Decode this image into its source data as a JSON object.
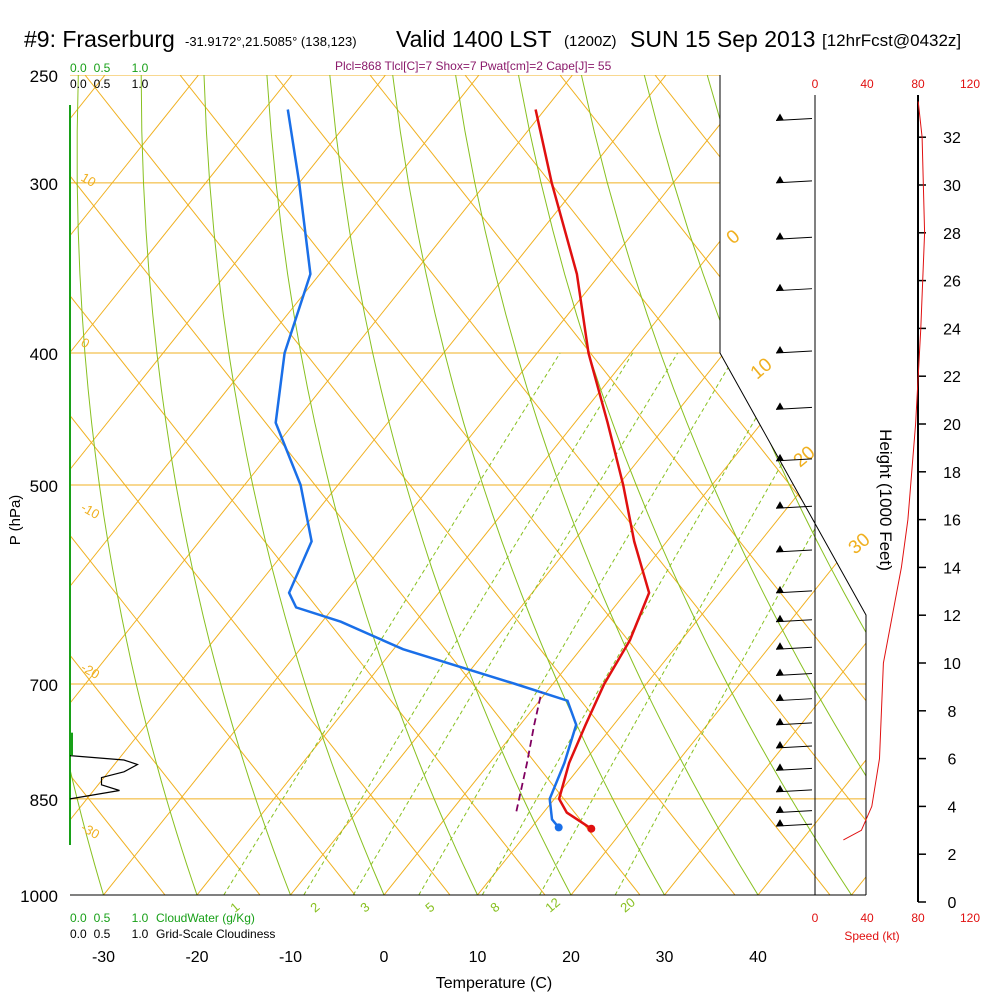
{
  "header": {
    "station": "#9: Fraserburg",
    "coords": "-31.9172°,21.5085° (138,123)",
    "valid": "Valid 1400 LST",
    "utc": "(1200Z)",
    "date": "SUN 15 Sep 2013",
    "forecast": "[12hrFcst@0432z]",
    "indices": "Plcl=868 Tlcl[C]=7 Shox=7 Pwat[cm]=2 Cape[J]= 55"
  },
  "colors": {
    "temperature": "#e01010",
    "dewpoint": "#1a6fe8",
    "parcel": "#800060",
    "isotherm": "#f0b020",
    "dry_adiabat": "#88c020",
    "mixing_ratio": "#88c020",
    "cloud_water": "#18a018",
    "wind_speed": "#e01010"
  },
  "chart_data": {
    "type": "skew-t log-p sounding",
    "xlabel": "Temperature (C)",
    "ylabel": "P (hPa)",
    "right_axis_label": "Height (1000 Feet)",
    "x_ticks": [
      -30,
      -20,
      -10,
      0,
      10,
      20,
      30,
      40
    ],
    "p_ticks": [
      250,
      300,
      400,
      500,
      700,
      850,
      1000
    ],
    "height_ticks": [
      0,
      2,
      4,
      6,
      8,
      10,
      12,
      14,
      16,
      18,
      20,
      22,
      24,
      26,
      28,
      30,
      32
    ],
    "isotherm_labels": [
      "10",
      "0",
      "-10",
      "-20",
      "-30",
      "0",
      "10",
      "20",
      "30"
    ],
    "mixing_ratio_labels": [
      "1",
      "2",
      "3",
      "5",
      "8",
      "12",
      "20"
    ],
    "speed_axis": {
      "label": "Speed (kt)",
      "ticks_top": [
        "0",
        "40",
        "80",
        "120"
      ],
      "ticks_bottom": [
        "0",
        "40",
        "80",
        "120"
      ]
    },
    "cloud_axis": {
      "top_green": [
        "0.0",
        "0.5",
        "1.0"
      ],
      "top_black": [
        "0.0",
        "0.5",
        "1.0"
      ],
      "bottom_green": [
        "0.0",
        "0.5",
        "1.0"
      ],
      "bottom_black": [
        "0.0",
        "0.5",
        "1.0"
      ],
      "cloud_water_label": "CloudWater (g/Kg)",
      "cloudiness_label": "Grid-Scale Cloudiness"
    },
    "temperature": [
      {
        "p": 894,
        "t": 16.5
      },
      {
        "p": 870,
        "t": 12.5
      },
      {
        "p": 850,
        "t": 10.5
      },
      {
        "p": 800,
        "t": 8.5
      },
      {
        "p": 750,
        "t": 7.0
      },
      {
        "p": 700,
        "t": 5.5
      },
      {
        "p": 650,
        "t": 4.5
      },
      {
        "p": 600,
        "t": 2.5
      },
      {
        "p": 550,
        "t": -3.5
      },
      {
        "p": 500,
        "t": -9.5
      },
      {
        "p": 450,
        "t": -16.5
      },
      {
        "p": 400,
        "t": -24.5
      },
      {
        "p": 350,
        "t": -32.5
      },
      {
        "p": 300,
        "t": -43.0
      },
      {
        "p": 265,
        "t": -51.0
      }
    ],
    "dewpoint": [
      {
        "p": 892,
        "t": 12.9
      },
      {
        "p": 880,
        "t": 11.5
      },
      {
        "p": 850,
        "t": 9.5
      },
      {
        "p": 800,
        "t": 8.0
      },
      {
        "p": 750,
        "t": 6.0
      },
      {
        "p": 720,
        "t": 3.0
      },
      {
        "p": 700,
        "t": -4.0
      },
      {
        "p": 660,
        "t": -19.0
      },
      {
        "p": 630,
        "t": -28.0
      },
      {
        "p": 615,
        "t": -34.0
      },
      {
        "p": 600,
        "t": -36.0
      },
      {
        "p": 550,
        "t": -38.0
      },
      {
        "p": 500,
        "t": -44.0
      },
      {
        "p": 450,
        "t": -52.0
      },
      {
        "p": 400,
        "t": -57.0
      },
      {
        "p": 350,
        "t": -61.0
      },
      {
        "p": 300,
        "t": -70.0
      },
      {
        "p": 265,
        "t": -77.5
      }
    ],
    "parcel": [
      {
        "p": 868,
        "t": 7.0
      },
      {
        "p": 800,
        "t": 4.0
      },
      {
        "p": 750,
        "t": 1.5
      },
      {
        "p": 710,
        "t": -0.5
      }
    ],
    "wind_speed_profile": [
      {
        "h": 2.6,
        "kt": 22
      },
      {
        "h": 3.0,
        "kt": 36
      },
      {
        "h": 4.0,
        "kt": 44
      },
      {
        "h": 6.0,
        "kt": 50
      },
      {
        "h": 10.0,
        "kt": 53
      },
      {
        "h": 12.0,
        "kt": 60
      },
      {
        "h": 14.0,
        "kt": 67
      },
      {
        "h": 16.0,
        "kt": 72
      },
      {
        "h": 20.0,
        "kt": 78
      },
      {
        "h": 24.0,
        "kt": 82
      },
      {
        "h": 28.0,
        "kt": 85
      },
      {
        "h": 32.0,
        "kt": 83
      },
      {
        "h": 33.5,
        "kt": 80
      }
    ],
    "cloud_water_gkg": 0.0,
    "cloudiness_profile": [
      {
        "p": 790,
        "c": 0.0
      },
      {
        "p": 796,
        "c": 0.6
      },
      {
        "p": 802,
        "c": 0.75
      },
      {
        "p": 812,
        "c": 0.6
      },
      {
        "p": 820,
        "c": 0.35
      },
      {
        "p": 830,
        "c": 0.35
      },
      {
        "p": 838,
        "c": 0.55
      },
      {
        "p": 850,
        "c": 0.0
      }
    ]
  }
}
